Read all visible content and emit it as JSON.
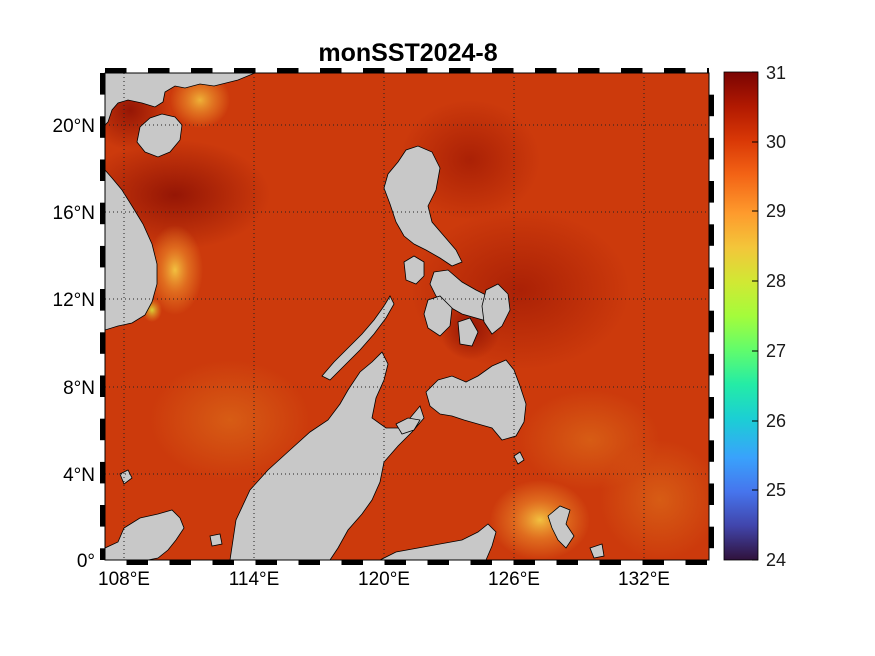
{
  "title": "monSST2024-8",
  "map": {
    "lon_range": [
      106.5,
      135.5
    ],
    "lat_range": [
      0,
      22.5
    ],
    "lon_ticks": [
      "108°E",
      "114°E",
      "120°E",
      "126°E",
      "132°E"
    ],
    "lat_ticks": [
      "0°",
      "4°N",
      "8°N",
      "12°N",
      "16°N",
      "20°N"
    ],
    "land_color": "#c8c8c8",
    "coastline_color": "#000000",
    "grid": "dotted"
  },
  "colorbar": {
    "min": 24,
    "max": 31,
    "ticks": [
      "24",
      "25",
      "26",
      "27",
      "28",
      "29",
      "30",
      "31"
    ],
    "colormap": [
      "#30123b",
      "#4145ab",
      "#4675ed",
      "#39a2fc",
      "#1bcfd4",
      "#24eca6",
      "#61fc6c",
      "#a4fc3b",
      "#d1e834",
      "#f3c63a",
      "#fe9b2d",
      "#f36315",
      "#d93806",
      "#b11901",
      "#7a0403"
    ]
  },
  "chart_data": {
    "type": "heatmap",
    "title": "monSST2024-8",
    "variable_range": [
      24,
      31
    ],
    "x_ticks": [
      "108°E",
      "114°E",
      "120°E",
      "126°E",
      "132°E"
    ],
    "y_ticks": [
      "0°",
      "4°N",
      "8°N",
      "12°N",
      "16°N",
      "20°N"
    ]
  }
}
